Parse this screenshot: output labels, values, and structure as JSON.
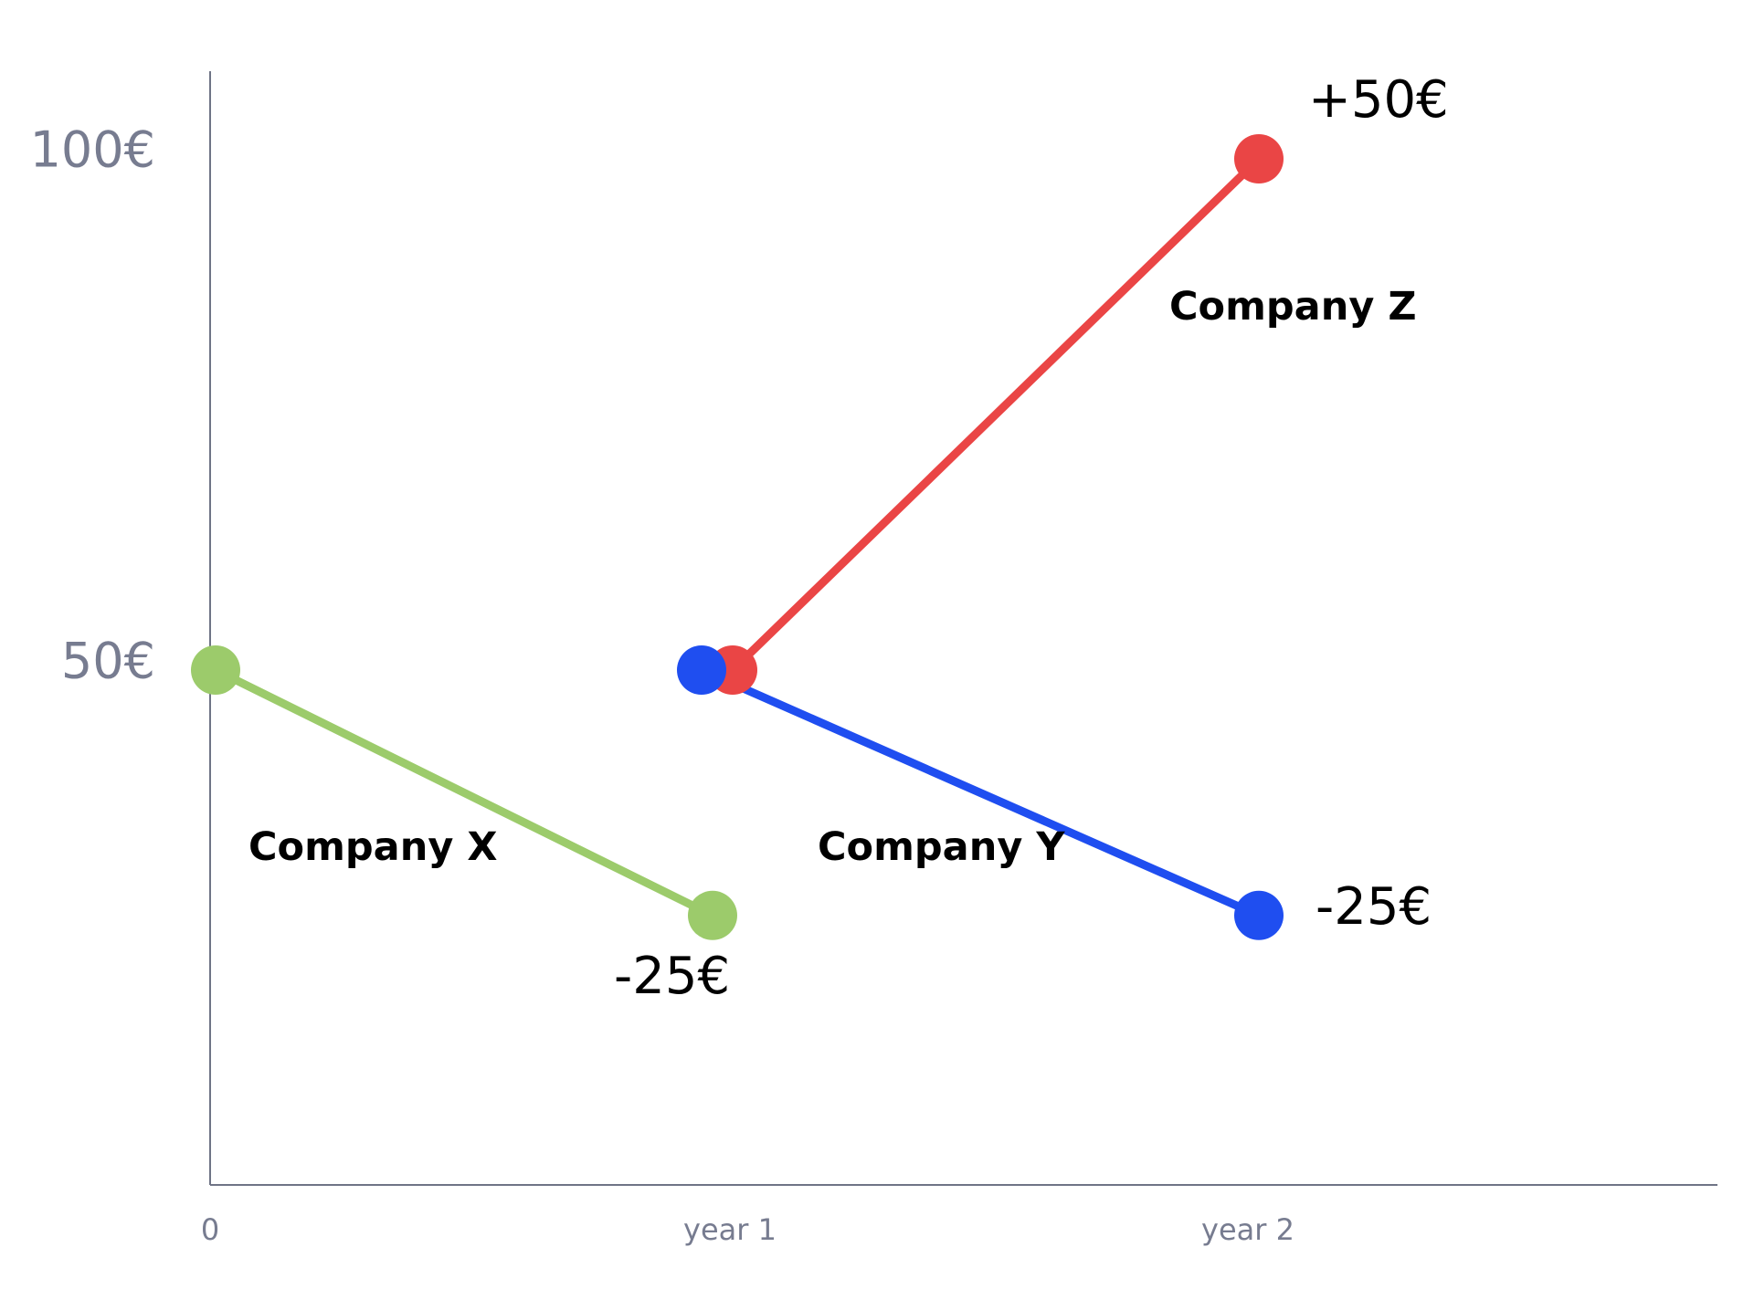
{
  "chart_data": {
    "type": "line",
    "categories": [
      "0",
      "year 1",
      "year 2"
    ],
    "yticks": [
      {
        "value": 100,
        "label": "100€"
      },
      {
        "value": 50,
        "label": "50€"
      }
    ],
    "ylim": [
      0,
      110
    ],
    "series": [
      {
        "name": "Company X",
        "color": "#9ccb6b",
        "points": [
          {
            "x": "0",
            "y": 50
          },
          {
            "x": "year 1",
            "y": 26,
            "label": "-25€"
          }
        ]
      },
      {
        "name": "Company Z",
        "color": "#ea4545",
        "points": [
          {
            "x": "year 1",
            "y": 50
          },
          {
            "x": "year 2",
            "y": 100,
            "label": "+50€"
          }
        ]
      },
      {
        "name": "Company Y",
        "color": "#1f4ef0",
        "points": [
          {
            "x": "year 1",
            "y": 50
          },
          {
            "x": "year 2",
            "y": 26,
            "label": "-25€"
          }
        ]
      }
    ]
  }
}
